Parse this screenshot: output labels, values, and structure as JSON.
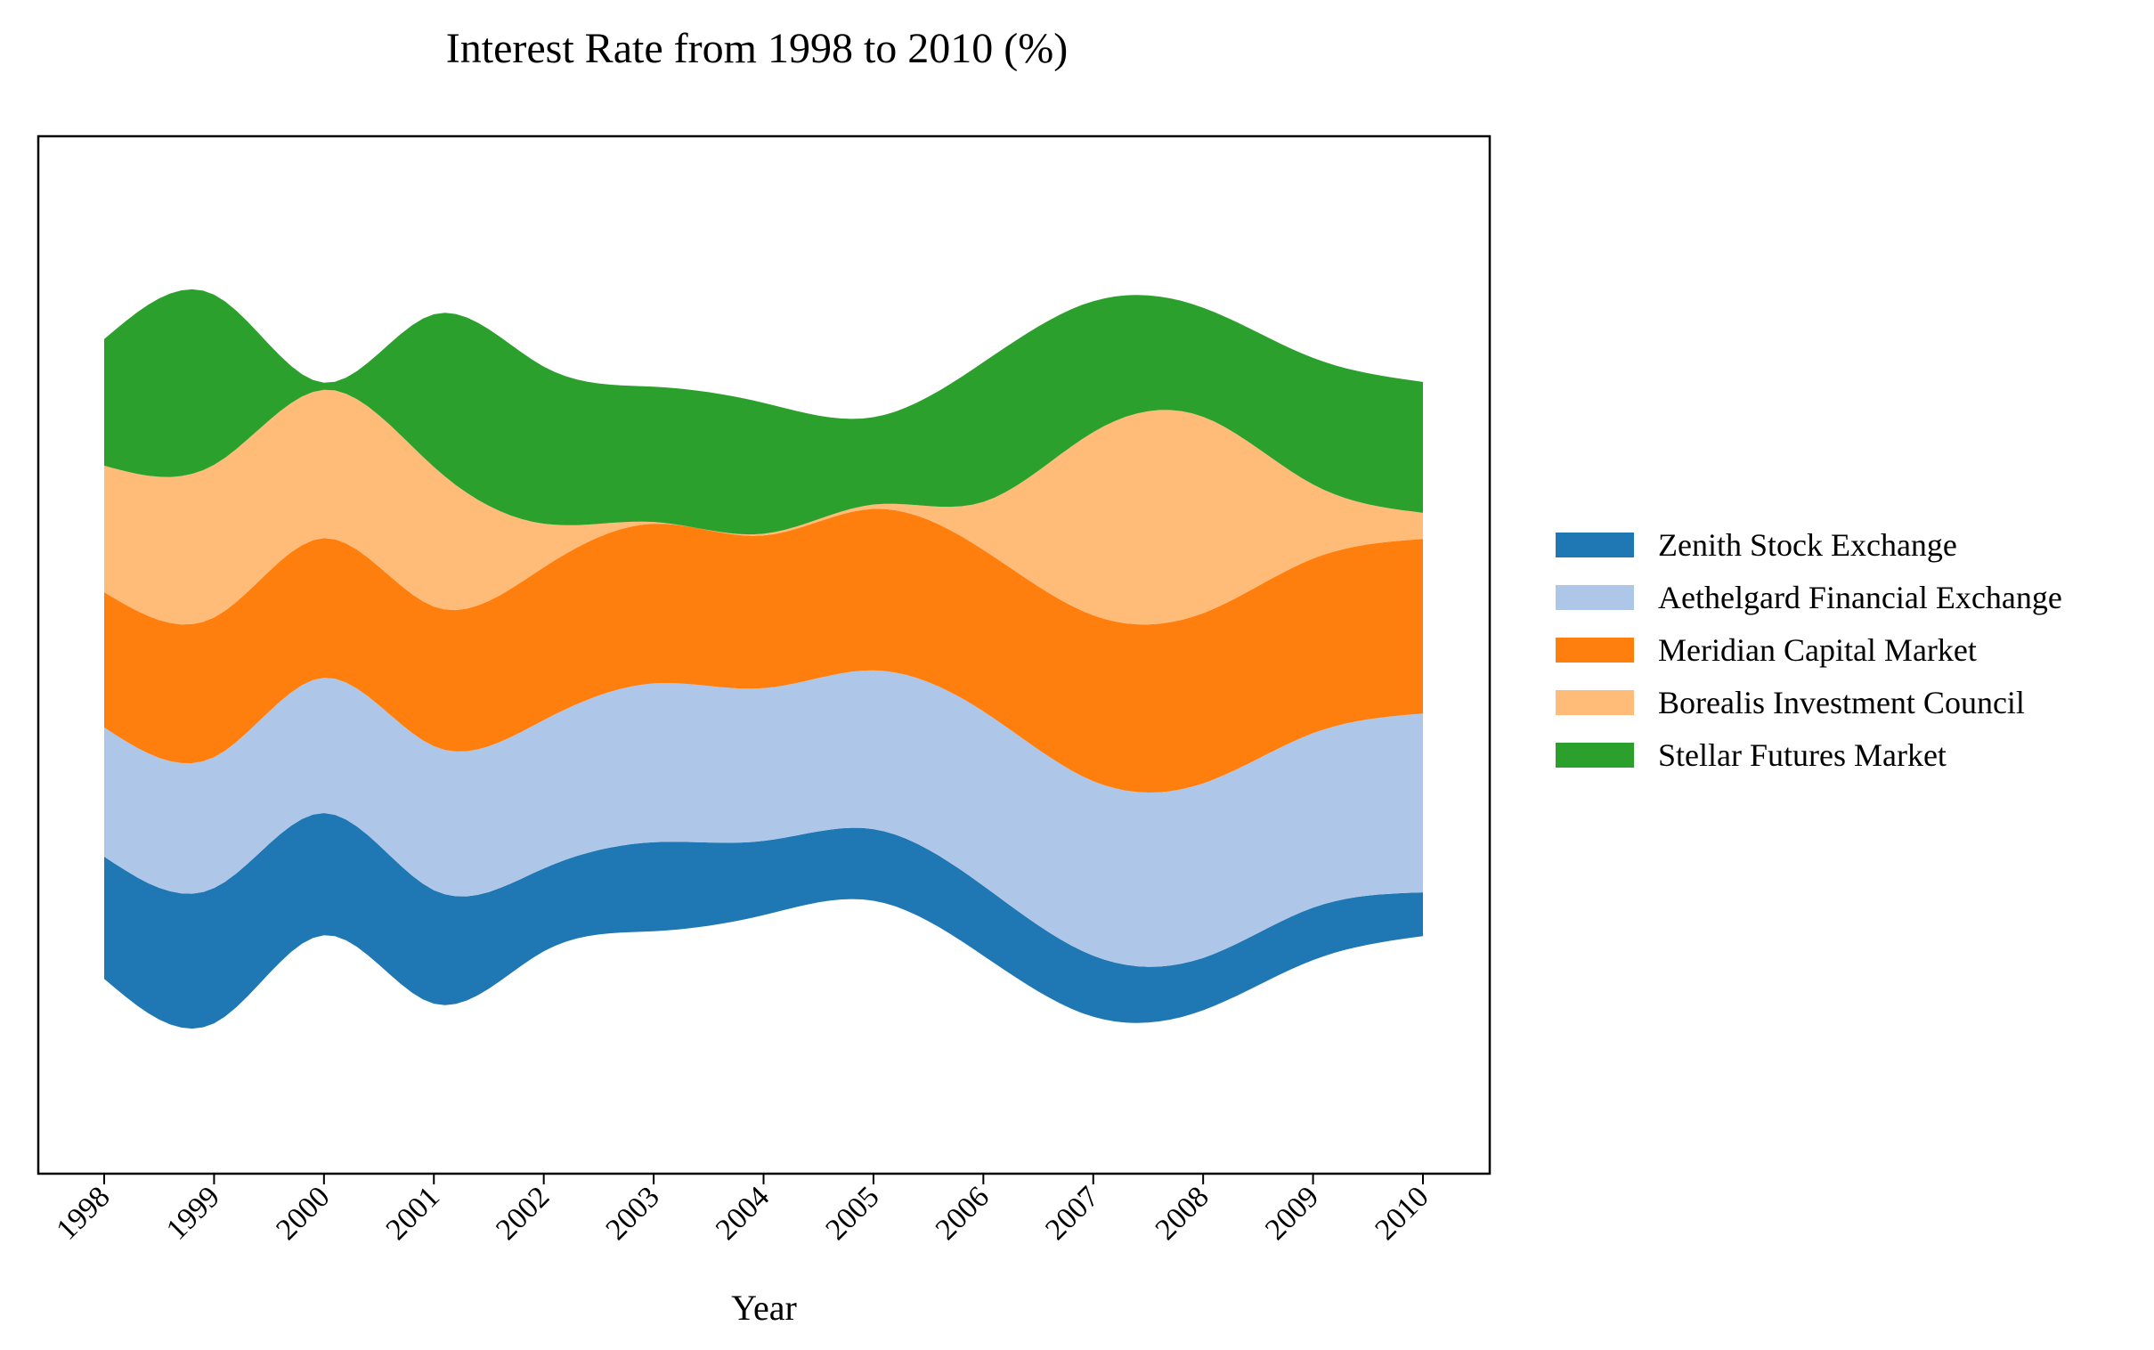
{
  "chart_data": {
    "type": "area",
    "subtype": "streamgraph",
    "title": "Interest Rate from 1998 to 2010 (%)",
    "xlabel": "Year",
    "ylabel": "",
    "x": [
      "1998",
      "1999",
      "2000",
      "2001",
      "2002",
      "2003",
      "2004",
      "2005",
      "2006",
      "2007",
      "2008",
      "2009",
      "2010"
    ],
    "series": [
      {
        "name": "Zenith Stock Exchange",
        "color": "#1f77b4",
        "values": [
          1.4,
          1.55,
          1.4,
          1.3,
          0.95,
          1.02,
          0.85,
          0.82,
          0.8,
          0.7,
          0.6,
          0.6,
          0.5
        ]
      },
      {
        "name": "Aethelgard Financial Exchange",
        "color": "#aec7e8",
        "values": [
          1.48,
          1.5,
          1.55,
          1.65,
          1.7,
          1.82,
          1.75,
          1.82,
          2.0,
          2.0,
          2.0,
          2.0,
          2.05
        ]
      },
      {
        "name": "Meridian Capital Market",
        "color": "#ff7f0e",
        "values": [
          1.55,
          1.6,
          1.6,
          1.6,
          1.75,
          1.83,
          1.75,
          1.85,
          1.85,
          1.9,
          1.95,
          2.0,
          2.0
        ]
      },
      {
        "name": "Borealis Investment Council",
        "color": "#ffbb78",
        "values": [
          1.45,
          1.75,
          1.7,
          1.6,
          0.5,
          0.02,
          0.02,
          0.05,
          0.55,
          2.1,
          2.25,
          0.85,
          0.3
        ]
      },
      {
        "name": "Stellar Futures Market",
        "color": "#2ca02c",
        "values": [
          1.45,
          1.95,
          0.08,
          1.75,
          1.8,
          1.55,
          1.5,
          1.0,
          1.6,
          1.5,
          1.25,
          1.45,
          1.5
        ]
      }
    ],
    "xlim": [
      "1998",
      "2010"
    ],
    "grid": false,
    "legend_position": "right"
  }
}
